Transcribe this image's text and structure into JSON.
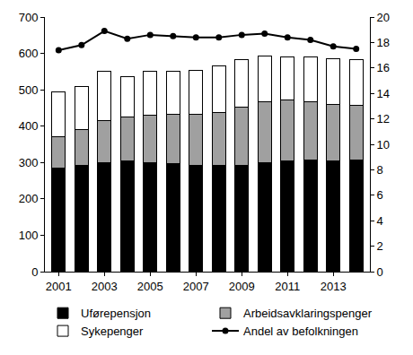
{
  "chart_data": {
    "type": "bar",
    "stacked": true,
    "grid": false,
    "legend": "bottom",
    "x": [
      2001,
      2002,
      2003,
      2004,
      2005,
      2006,
      2007,
      2008,
      2009,
      2010,
      2011,
      2012,
      2013,
      2014
    ],
    "xlim": [
      2000.4,
      2014.6
    ],
    "xticks": [
      2001,
      2003,
      2005,
      2007,
      2009,
      2011,
      2013
    ],
    "ylim": [
      0,
      700
    ],
    "yticks": [
      0,
      100,
      200,
      300,
      400,
      500,
      600,
      700
    ],
    "y2lim": [
      0,
      20
    ],
    "y2ticks": [
      0,
      2,
      4,
      6,
      8,
      10,
      12,
      14,
      16,
      18,
      20
    ],
    "series": [
      {
        "name": "Uførepensjon",
        "type": "bar",
        "color": "#000000",
        "values": [
          285,
          292,
          300,
          305,
          300,
          297,
          293,
          293,
          293,
          300,
          305,
          308,
          305,
          308
        ]
      },
      {
        "name": "Arbeidsavklaringspenger",
        "type": "bar",
        "color": "#a0a0a0",
        "values": [
          85,
          98,
          115,
          120,
          130,
          136,
          140,
          144,
          159,
          167,
          167,
          159,
          155,
          149
        ]
      },
      {
        "name": "Sykepenger",
        "type": "bar",
        "color": "#ffffff",
        "values": [
          125,
          120,
          135,
          110,
          120,
          117,
          120,
          128,
          130,
          126,
          118,
          123,
          125,
          125
        ]
      },
      {
        "name": "Andel av befolkningen",
        "type": "line",
        "axis": "y2",
        "color": "#000000",
        "marker": "circle",
        "values": [
          17.4,
          17.8,
          18.9,
          18.3,
          18.6,
          18.5,
          18.4,
          18.4,
          18.6,
          18.7,
          18.4,
          18.2,
          17.7,
          17.5
        ]
      }
    ]
  }
}
